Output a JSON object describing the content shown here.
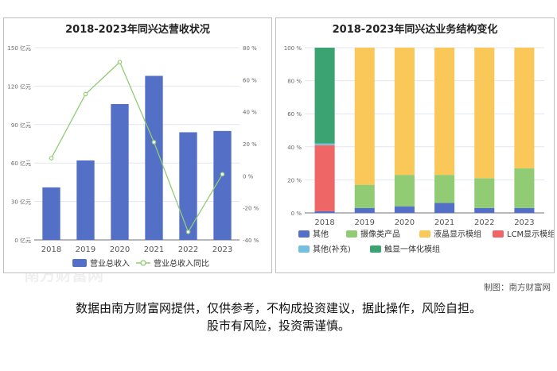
{
  "watermark": "南方财富网",
  "credit": "制图：南方财富网",
  "disclaimer": [
    "数据由南方财富网提供，仅供参考，不构成投资建议，据此操作，风险自担。",
    "股市有风险，投资需谨慎。"
  ],
  "colors": {
    "bar": "#5470c6",
    "line": "#91cc75",
    "other": "#5470c6",
    "camera": "#91cc75",
    "lcd": "#fac858",
    "lcm": "#ee6666",
    "other_supp": "#73c0de",
    "touch": "#3ba272"
  },
  "chart_data": [
    {
      "type": "bar",
      "title": "2018-2023年同兴达营收状况",
      "categories": [
        "2018",
        "2019",
        "2020",
        "2021",
        "2022",
        "2023"
      ],
      "series": [
        {
          "name": "营业总收入",
          "type": "bar",
          "axis": "left",
          "values": [
            41,
            62,
            106,
            128,
            84,
            85
          ]
        },
        {
          "name": "营业总收入同比",
          "type": "line",
          "axis": "right",
          "values": [
            11,
            51,
            71,
            21,
            -35,
            1
          ]
        }
      ],
      "y_left": {
        "ticks": [
          "0 亿元",
          "30 亿元",
          "60 亿元",
          "90 亿元",
          "120 亿元",
          "150 亿元"
        ],
        "min": 0,
        "max": 150
      },
      "y_right": {
        "ticks": [
          "-40 %",
          "-20 %",
          "0 %",
          "20 %",
          "40 %",
          "60 %",
          "80 %"
        ],
        "min": -40,
        "max": 80
      },
      "grid": true,
      "legend": "bottom"
    },
    {
      "type": "bar",
      "stacked": true,
      "title": "2018-2023年同兴达业务结构变化",
      "categories": [
        "2018",
        "2019",
        "2020",
        "2021",
        "2022",
        "2023"
      ],
      "series": [
        {
          "name": "其他",
          "values": [
            1,
            3,
            4,
            6,
            3,
            3
          ]
        },
        {
          "name": "摄像类产品",
          "values": [
            0,
            14,
            19,
            17,
            18,
            24
          ]
        },
        {
          "name": "液晶显示模组",
          "values": [
            0,
            83,
            77,
            77,
            79,
            73
          ]
        },
        {
          "name": "LCM显示模组",
          "values": [
            40,
            0,
            0,
            0,
            0,
            0
          ]
        },
        {
          "name": "其他(补充)",
          "values": [
            1,
            0,
            0,
            0,
            0,
            0
          ]
        },
        {
          "name": "触显一体化模组",
          "values": [
            58,
            0,
            0,
            0,
            0,
            0
          ]
        }
      ],
      "y_axis": {
        "ticks": [
          "0 %",
          "20 %",
          "40 %",
          "60 %",
          "80 %",
          "100 %"
        ],
        "min": 0,
        "max": 100
      },
      "grid": true,
      "legend": "bottom"
    }
  ]
}
